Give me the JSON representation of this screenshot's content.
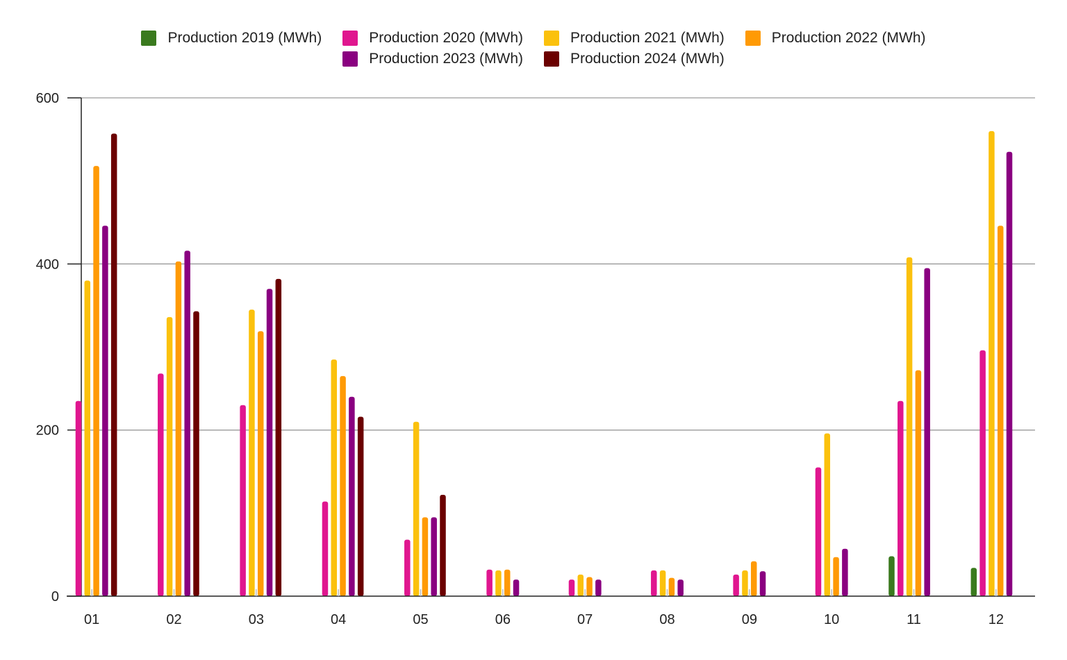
{
  "chart_data": {
    "type": "bar",
    "title": "",
    "xlabel": "",
    "ylabel": "",
    "categories": [
      "01",
      "02",
      "03",
      "04",
      "05",
      "06",
      "07",
      "08",
      "09",
      "10",
      "11",
      "12"
    ],
    "ylim": [
      0,
      600
    ],
    "yticks": [
      "0",
      "200",
      "400",
      "600"
    ],
    "grid": true,
    "legend_position": "top",
    "series": [
      {
        "name": "Production 2019 (MWh)",
        "color": "#3a7a1e",
        "values": [
          null,
          null,
          null,
          null,
          null,
          null,
          null,
          null,
          null,
          null,
          48,
          34
        ]
      },
      {
        "name": "Production 2020 (MWh)",
        "color": "#e0168f",
        "values": [
          235,
          268,
          230,
          114,
          68,
          32,
          20,
          31,
          26,
          155,
          235,
          296
        ]
      },
      {
        "name": "Production 2021 (MWh)",
        "color": "#fbc10d",
        "values": [
          380,
          336,
          345,
          285,
          210,
          31,
          26,
          31,
          31,
          196,
          408,
          560
        ]
      },
      {
        "name": "Production 2022 (MWh)",
        "color": "#ff9a05",
        "values": [
          518,
          403,
          319,
          265,
          95,
          32,
          23,
          22,
          42,
          47,
          272,
          446
        ]
      },
      {
        "name": "Production 2023 (MWh)",
        "color": "#8a0080",
        "values": [
          446,
          416,
          370,
          240,
          95,
          20,
          20,
          20,
          30,
          57,
          395,
          535
        ]
      },
      {
        "name": "Production 2024 (MWh)",
        "color": "#6b0000",
        "values": [
          557,
          343,
          382,
          216,
          122,
          null,
          null,
          null,
          null,
          null,
          null,
          null
        ]
      }
    ]
  }
}
